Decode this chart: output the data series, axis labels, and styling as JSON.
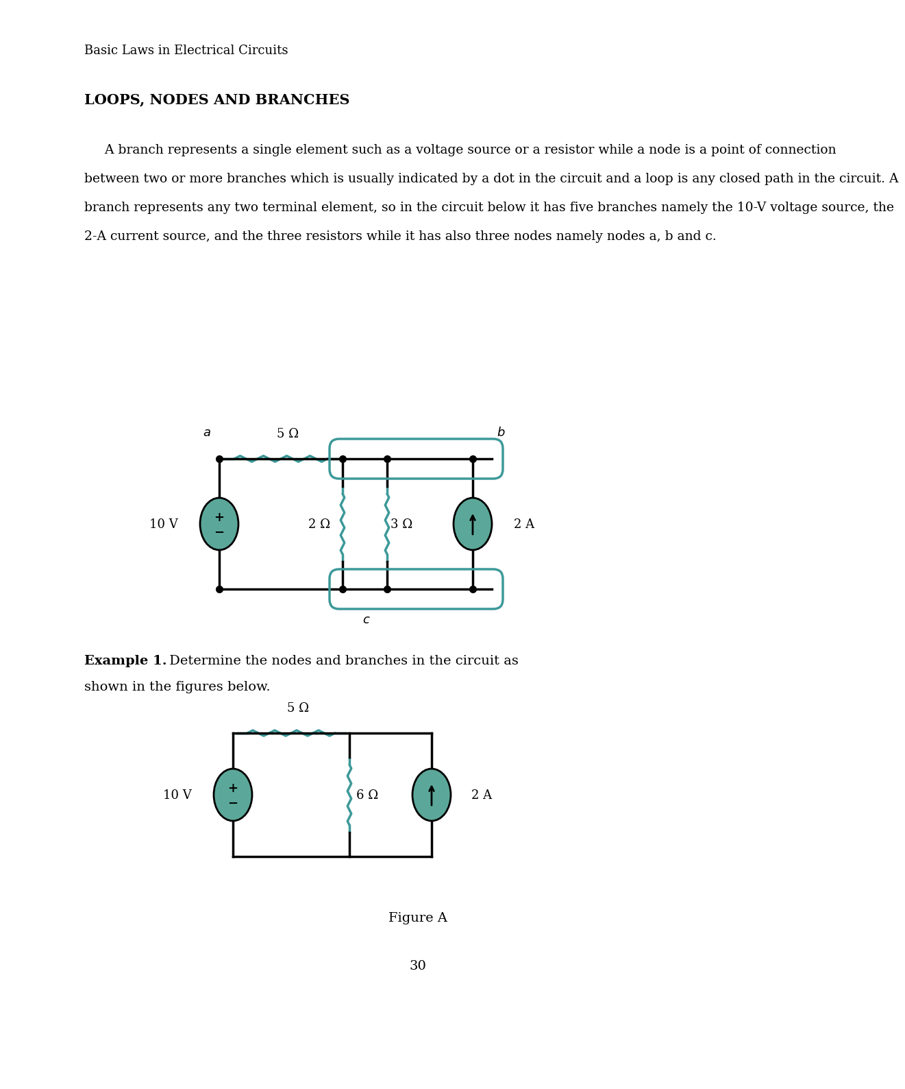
{
  "page_title": "Basic Laws in Electrical Circuits",
  "section_title": "LOOPS, NODES AND BRANCHES",
  "body_line1": "     A branch represents a single element such as a voltage source or a resistor while a node is a point of connection",
  "body_line2": "between two or more branches which is usually indicated by a dot in the circuit and a loop is any closed path in the circuit. A",
  "body_line3": "branch represents any two terminal element, so in the circuit below it has five branches namely the 10-V voltage source, the",
  "body_line4": "2-A current source, and the three resistors while it has also three nodes namely nodes a, b and c.",
  "example_bold": "Example 1.",
  "example_rest": " Determine the nodes and branches in the circuit as shown in the figures below.",
  "figure_caption": "Figure A",
  "page_number": "30",
  "teal_color": "#3D9999",
  "bg_color": "#ffffff",
  "text_color": "#000000",
  "c1_r5": "5 Ω",
  "c1_r2": "2 Ω",
  "c1_r3": "3 Ω",
  "c1_vs": "10 V",
  "c1_cs": "2 A",
  "c1_na": "a",
  "c1_nb": "b",
  "c1_nc": "c",
  "c2_r5": "5 Ω",
  "c2_r6": "6 Ω",
  "c2_vs": "10 V",
  "c2_cs": "2 A"
}
